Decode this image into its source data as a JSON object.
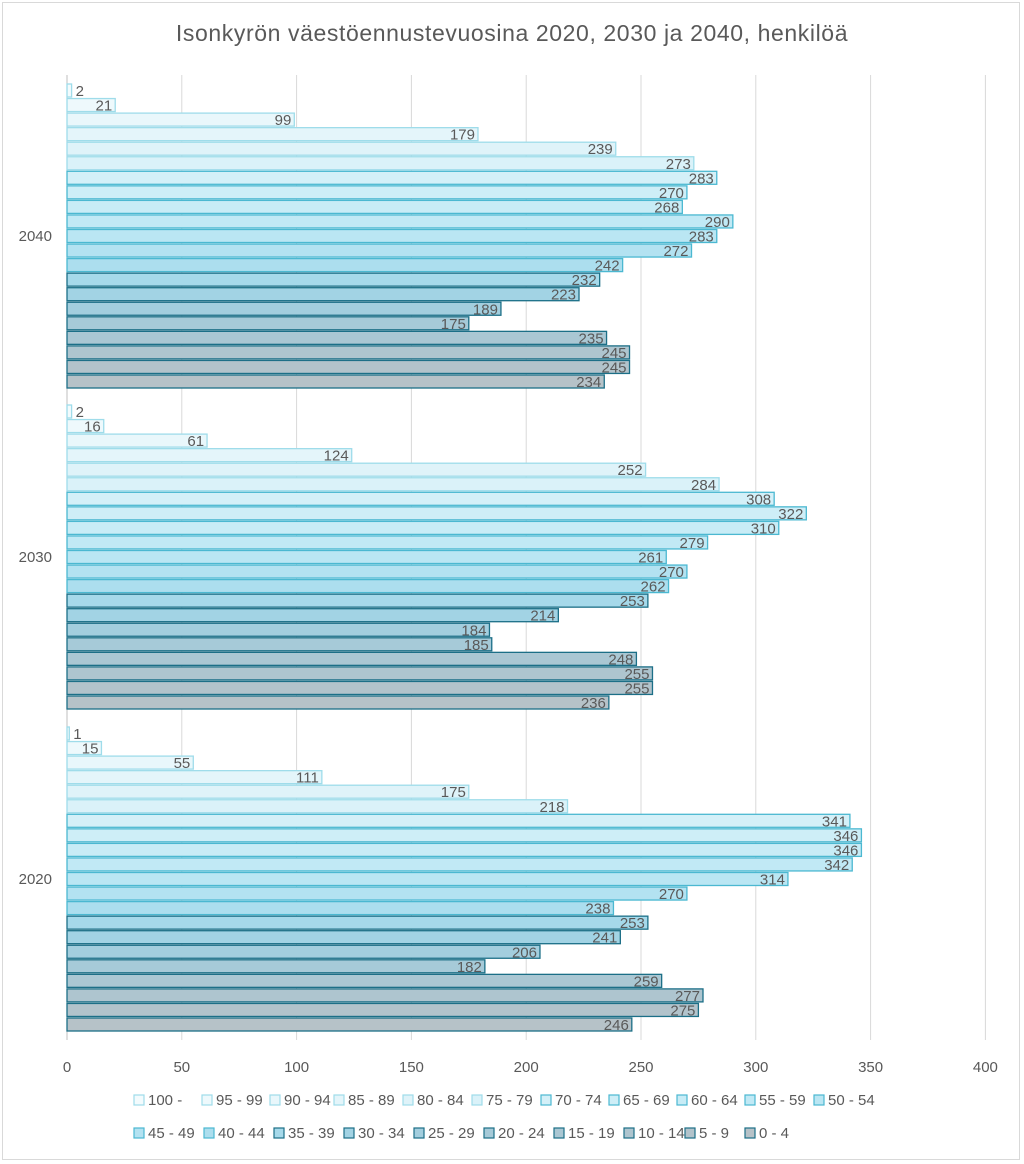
{
  "chart_data": {
    "type": "bar",
    "orientation": "horizontal",
    "title": "Isonkyrön  väestöennustevuosina  2020, 2030 ja 2040, henkilöä",
    "categories": [
      "2020",
      "2030",
      "2040"
    ],
    "xlim": [
      0,
      400
    ],
    "xticks": [
      "0",
      "50",
      "100",
      "150",
      "200",
      "250",
      "300",
      "350",
      "400"
    ],
    "grid": true,
    "legend_position": "bottom",
    "series": [
      {
        "name": "100 -",
        "values": [
          1,
          2,
          2
        ],
        "color": "#f3fbfd"
      },
      {
        "name": "95 - 99",
        "values": [
          15,
          16,
          21
        ],
        "color": "#eef9fc"
      },
      {
        "name": "90 - 94",
        "values": [
          55,
          61,
          99
        ],
        "color": "#e9f7fb"
      },
      {
        "name": "85 - 89",
        "values": [
          111,
          124,
          179
        ],
        "color": "#e4f5fa"
      },
      {
        "name": "80 - 84",
        "values": [
          175,
          252,
          239
        ],
        "color": "#dff3f9"
      },
      {
        "name": "75 - 79",
        "values": [
          218,
          284,
          273
        ],
        "color": "#daf2f9"
      },
      {
        "name": "70 - 74",
        "values": [
          341,
          308,
          283
        ],
        "color": "#d4f0f8"
      },
      {
        "name": "65 - 69",
        "values": [
          346,
          322,
          270
        ],
        "color": "#ceeef7"
      },
      {
        "name": "60 - 64",
        "values": [
          346,
          310,
          268
        ],
        "color": "#c8ecf6"
      },
      {
        "name": "55 - 59",
        "values": [
          342,
          279,
          290
        ],
        "color": "#c1e9f5"
      },
      {
        "name": "50 - 54",
        "values": [
          314,
          261,
          283
        ],
        "color": "#bae6f3"
      },
      {
        "name": "45 - 49",
        "values": [
          270,
          270,
          272
        ],
        "color": "#b3e2f1"
      },
      {
        "name": "40 - 44",
        "values": [
          238,
          262,
          242
        ],
        "color": "#acdeee"
      },
      {
        "name": "35 - 39",
        "values": [
          253,
          253,
          232
        ],
        "color": "#a6d9ea"
      },
      {
        "name": "30 - 34",
        "values": [
          241,
          214,
          223
        ],
        "color": "#a2d3e4"
      },
      {
        "name": "25 - 29",
        "values": [
          206,
          184,
          189
        ],
        "color": "#a3cede"
      },
      {
        "name": "20 - 24",
        "values": [
          182,
          185,
          175
        ],
        "color": "#a6cad8"
      },
      {
        "name": "15 - 19",
        "values": [
          259,
          248,
          235
        ],
        "color": "#aac7d3"
      },
      {
        "name": "10 - 14",
        "values": [
          277,
          255,
          245
        ],
        "color": "#aec5cf"
      },
      {
        "name": "5 - 9",
        "values": [
          275,
          255,
          245
        ],
        "color": "#b2c3cb"
      },
      {
        "name": "0 - 4",
        "values": [
          246,
          236,
          234
        ],
        "color": "#b6c2c8"
      }
    ],
    "border_colors": {
      "light": "#9fdcea",
      "mid": "#4bb8d1",
      "dark": "#1c6f87"
    },
    "gridline_color": "#d9d9d9",
    "text_color": "#595959"
  }
}
